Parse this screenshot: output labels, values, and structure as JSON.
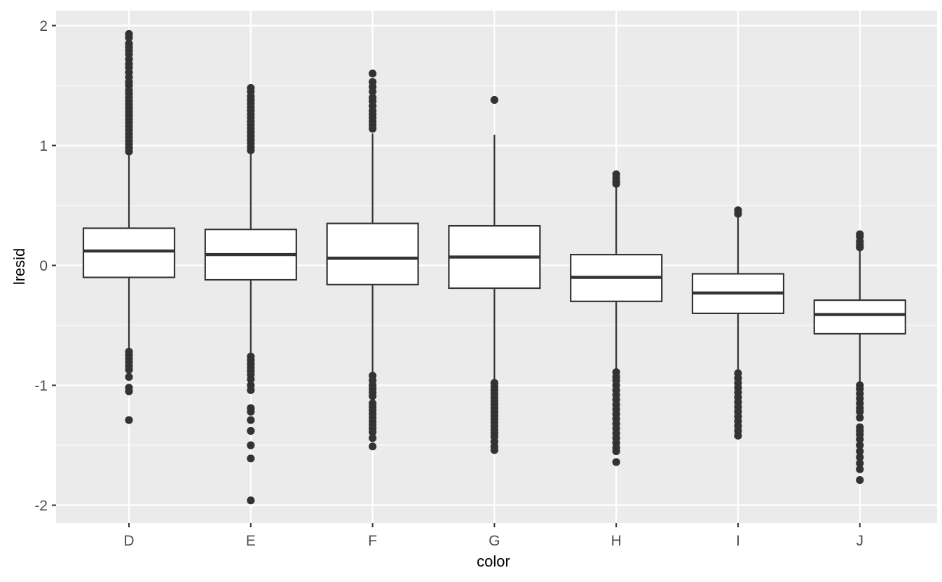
{
  "chart_data": {
    "type": "boxplot",
    "xlabel": "color",
    "ylabel": "lresid",
    "categories": [
      "D",
      "E",
      "F",
      "G",
      "H",
      "I",
      "J"
    ],
    "ylim": [
      -2.15,
      2.13
    ],
    "yticks": [
      -2,
      -1,
      0,
      1,
      2
    ],
    "ytick_labels": [
      "-2",
      "-1",
      "0",
      "1",
      "2"
    ],
    "grid": true,
    "panel_background": "#ebebeb",
    "grid_color": "#ffffff",
    "box_fill": "#ffffff",
    "line_color": "#333333",
    "boxes": [
      {
        "category": "D",
        "q1": -0.1,
        "median": 0.12,
        "q3": 0.31,
        "whisker_low": -0.7,
        "whisker_high": 0.93,
        "outliers": [
          1.93,
          1.9,
          1.85,
          1.82,
          1.79,
          1.76,
          1.72,
          1.68,
          1.65,
          1.61,
          1.57,
          1.53,
          1.5,
          1.46,
          1.43,
          1.4,
          1.37,
          1.34,
          1.31,
          1.28,
          1.25,
          1.22,
          1.19,
          1.16,
          1.13,
          1.1,
          1.07,
          1.04,
          1.01,
          0.98,
          0.95,
          -0.72,
          -0.75,
          -0.78,
          -0.81,
          -0.84,
          -0.87,
          -0.93,
          -1.02,
          -1.05,
          -1.29
        ]
      },
      {
        "category": "E",
        "q1": -0.12,
        "median": 0.09,
        "q3": 0.3,
        "whisker_low": -0.74,
        "whisker_high": 0.93,
        "outliers": [
          1.48,
          1.45,
          1.41,
          1.38,
          1.35,
          1.32,
          1.29,
          1.26,
          1.23,
          1.2,
          1.17,
          1.14,
          1.11,
          1.08,
          1.05,
          1.02,
          0.99,
          0.96,
          -0.76,
          -0.79,
          -0.82,
          -0.85,
          -0.88,
          -0.91,
          -0.95,
          -1.0,
          -1.04,
          -1.19,
          -1.22,
          -1.29,
          -1.38,
          -1.5,
          -1.61,
          -1.96
        ]
      },
      {
        "category": "F",
        "q1": -0.16,
        "median": 0.06,
        "q3": 0.35,
        "whisker_low": -0.9,
        "whisker_high": 1.1,
        "outliers": [
          1.6,
          1.53,
          1.49,
          1.45,
          1.4,
          1.37,
          1.33,
          1.29,
          1.26,
          1.23,
          1.2,
          1.17,
          1.14,
          -0.92,
          -0.96,
          -1.0,
          -1.03,
          -1.06,
          -1.09,
          -1.15,
          -1.18,
          -1.21,
          -1.24,
          -1.27,
          -1.3,
          -1.33,
          -1.36,
          -1.39,
          -1.44,
          -1.51
        ]
      },
      {
        "category": "G",
        "q1": -0.19,
        "median": 0.07,
        "q3": 0.33,
        "whisker_low": -0.96,
        "whisker_high": 1.09,
        "outliers": [
          1.38,
          -0.98,
          -1.01,
          -1.04,
          -1.07,
          -1.1,
          -1.13,
          -1.16,
          -1.19,
          -1.22,
          -1.25,
          -1.28,
          -1.31,
          -1.34,
          -1.37,
          -1.4,
          -1.43,
          -1.47,
          -1.51,
          -1.54
        ]
      },
      {
        "category": "H",
        "q1": -0.3,
        "median": -0.1,
        "q3": 0.09,
        "whisker_low": -0.87,
        "whisker_high": 0.66,
        "outliers": [
          0.76,
          0.73,
          0.7,
          0.68,
          -0.89,
          -0.93,
          -0.96,
          -1.0,
          -1.04,
          -1.08,
          -1.12,
          -1.16,
          -1.2,
          -1.24,
          -1.28,
          -1.32,
          -1.36,
          -1.4,
          -1.44,
          -1.48,
          -1.52,
          -1.55,
          -1.64
        ]
      },
      {
        "category": "I",
        "q1": -0.4,
        "median": -0.23,
        "q3": -0.07,
        "whisker_low": -0.88,
        "whisker_high": 0.41,
        "outliers": [
          0.46,
          0.43,
          -0.9,
          -0.94,
          -0.98,
          -1.02,
          -1.06,
          -1.1,
          -1.14,
          -1.18,
          -1.22,
          -1.26,
          -1.3,
          -1.34,
          -1.38,
          -1.42
        ]
      },
      {
        "category": "J",
        "q1": -0.57,
        "median": -0.41,
        "q3": -0.29,
        "whisker_low": -0.99,
        "whisker_high": 0.12,
        "outliers": [
          0.26,
          0.24,
          0.2,
          0.17,
          0.15,
          -1.0,
          -1.03,
          -1.07,
          -1.11,
          -1.15,
          -1.19,
          -1.22,
          -1.27,
          -1.35,
          -1.38,
          -1.41,
          -1.45,
          -1.5,
          -1.55,
          -1.6,
          -1.65,
          -1.7,
          -1.79
        ]
      }
    ]
  }
}
